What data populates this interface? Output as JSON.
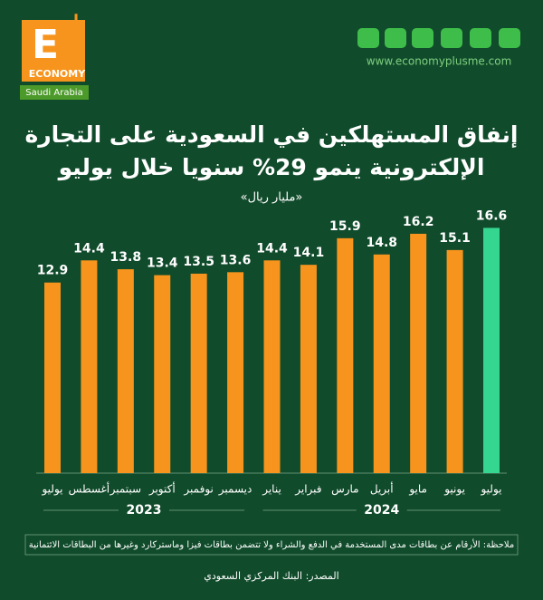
{
  "chart_data": {
    "type": "bar",
    "title_lines": [
      "إنفاق المستهلكين في السعودية على التجارة",
      "الإلكترونية ينمو 29% سنويا خلال يوليو"
    ],
    "subtitle": "«مليار ريال»",
    "categories": [
      "يوليو",
      "أغسطس",
      "سبتمبر",
      "أكتوبر",
      "نوفمبر",
      "ديسمبر",
      "يناير",
      "فبراير",
      "مارس",
      "أبريل",
      "مايو",
      "يونيو",
      "يوليو"
    ],
    "values": [
      12.9,
      14.4,
      13.8,
      13.4,
      13.5,
      13.6,
      14.4,
      14.1,
      15.9,
      14.8,
      16.2,
      15.1,
      16.6
    ],
    "colors": [
      "#f7941d",
      "#f7941d",
      "#f7941d",
      "#f7941d",
      "#f7941d",
      "#f7941d",
      "#f7941d",
      "#f7941d",
      "#f7941d",
      "#f7941d",
      "#f7941d",
      "#f7941d",
      "#35d68f"
    ],
    "year_groups": [
      {
        "label": "2023",
        "first": 0,
        "last": 5
      },
      {
        "label": "2024",
        "first": 6,
        "last": 12
      }
    ],
    "note": "ملاحظة: الأرقام عن بطاقات مدى المستخدمة في الدفع والشراء ولا تتضمن بطاقات فيزا وماستركارد وغيرها من البطاقات الائتمانية",
    "source": "المصدر: البنك المركزي السعودي"
  },
  "brand": {
    "logo_letter": "E",
    "logo_word": "ECONOMY",
    "region": "Saudi Arabia",
    "website": "www.economyplusme.com"
  }
}
